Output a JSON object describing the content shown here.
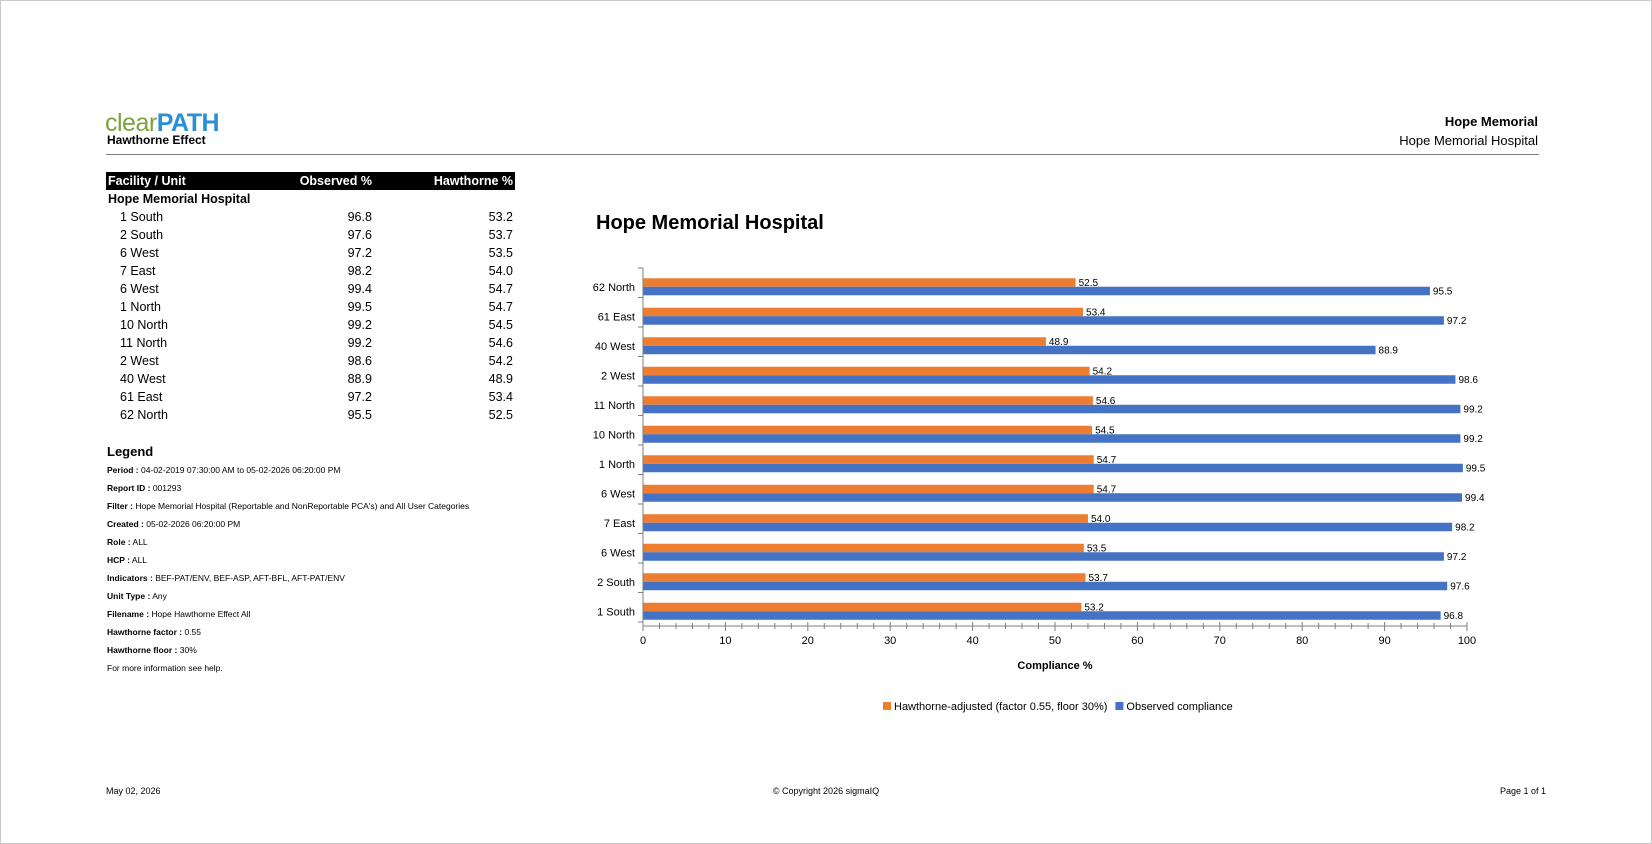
{
  "header": {
    "logo_clear": "clear",
    "logo_path": "PATH",
    "report_name": "Hawthorne Effect",
    "facility_short": "Hope Memorial",
    "facility_full": "Hope Memorial Hospital"
  },
  "table": {
    "col_unit": "Facility / Unit",
    "col_observed": "Observed %",
    "col_hawthorne": "Hawthorne %",
    "facility": "Hope Memorial Hospital",
    "rows": [
      {
        "unit": "1 South",
        "observed": "96.8",
        "hawthorne": "53.2"
      },
      {
        "unit": "2 South",
        "observed": "97.6",
        "hawthorne": "53.7"
      },
      {
        "unit": "6 West",
        "observed": "97.2",
        "hawthorne": "53.5"
      },
      {
        "unit": "7 East",
        "observed": "98.2",
        "hawthorne": "54.0"
      },
      {
        "unit": "6 West",
        "observed": "99.4",
        "hawthorne": "54.7"
      },
      {
        "unit": "1 North",
        "observed": "99.5",
        "hawthorne": "54.7"
      },
      {
        "unit": "10 North",
        "observed": "99.2",
        "hawthorne": "54.5"
      },
      {
        "unit": "11 North",
        "observed": "99.2",
        "hawthorne": "54.6"
      },
      {
        "unit": "2 West",
        "observed": "98.6",
        "hawthorne": "54.2"
      },
      {
        "unit": "40 West",
        "observed": "88.9",
        "hawthorne": "48.9"
      },
      {
        "unit": "61 East",
        "observed": "97.2",
        "hawthorne": "53.4"
      },
      {
        "unit": "62 North",
        "observed": "95.5",
        "hawthorne": "52.5"
      }
    ]
  },
  "legend": {
    "title": "Legend",
    "items": [
      {
        "label": "Period :",
        "value": "04-02-2019 07:30:00 AM to 05-02-2026 06:20:00 PM"
      },
      {
        "label": "Report ID :",
        "value": "001293"
      },
      {
        "label": "Filter :",
        "value": "Hope Memorial Hospital (Reportable and NonReportable PCA's) and All User Categories"
      },
      {
        "label": "Created :",
        "value": "05-02-2026 06:20:00 PM"
      },
      {
        "label": "Role :",
        "value": "ALL"
      },
      {
        "label": "HCP :",
        "value": "ALL"
      },
      {
        "label": "Indicators :",
        "value": "BEF-PAT/ENV, BEF-ASP, AFT-BFL, AFT-PAT/ENV"
      },
      {
        "label": "Unit Type :",
        "value": "Any"
      },
      {
        "label": "Filename :",
        "value": "Hope   Hawthorne Effect All"
      },
      {
        "label": "Hawthorne factor :",
        "value": "0.55"
      },
      {
        "label": "Hawthorne floor :",
        "value": "30%"
      }
    ],
    "help": "For more information see help."
  },
  "chart_data": {
    "type": "bar",
    "orientation": "horizontal",
    "title": "Hope Memorial Hospital",
    "xlabel": "Compliance %",
    "ylabel": "",
    "xlim": [
      0,
      100
    ],
    "ticks": [
      "0",
      "10",
      "20",
      "30",
      "40",
      "50",
      "60",
      "70",
      "80",
      "90",
      "100"
    ],
    "categories": [
      "62 North",
      "61 East",
      "40 West",
      "2 West",
      "11 North",
      "10 North",
      "1 North",
      "6 West",
      "7 East",
      "6 West",
      "2 South",
      "1 South"
    ],
    "series": [
      {
        "name": "Hawthorne-adjusted (factor 0.55, floor 30%)",
        "color": "#ed7d31",
        "values": [
          52.5,
          53.4,
          48.9,
          54.2,
          54.6,
          54.5,
          54.7,
          54.7,
          54.0,
          53.5,
          53.7,
          53.2
        ]
      },
      {
        "name": "Observed compliance",
        "color": "#4472c4",
        "values": [
          95.5,
          97.2,
          88.9,
          98.6,
          99.2,
          99.2,
          99.5,
          99.4,
          98.2,
          97.2,
          97.6,
          96.8
        ]
      }
    ],
    "grid": false,
    "legend_position": "bottom"
  },
  "footer": {
    "date": "May 02, 2026",
    "copyright": "© Copyright 2026 sigmaIQ",
    "page": "Page 1 of 1"
  }
}
